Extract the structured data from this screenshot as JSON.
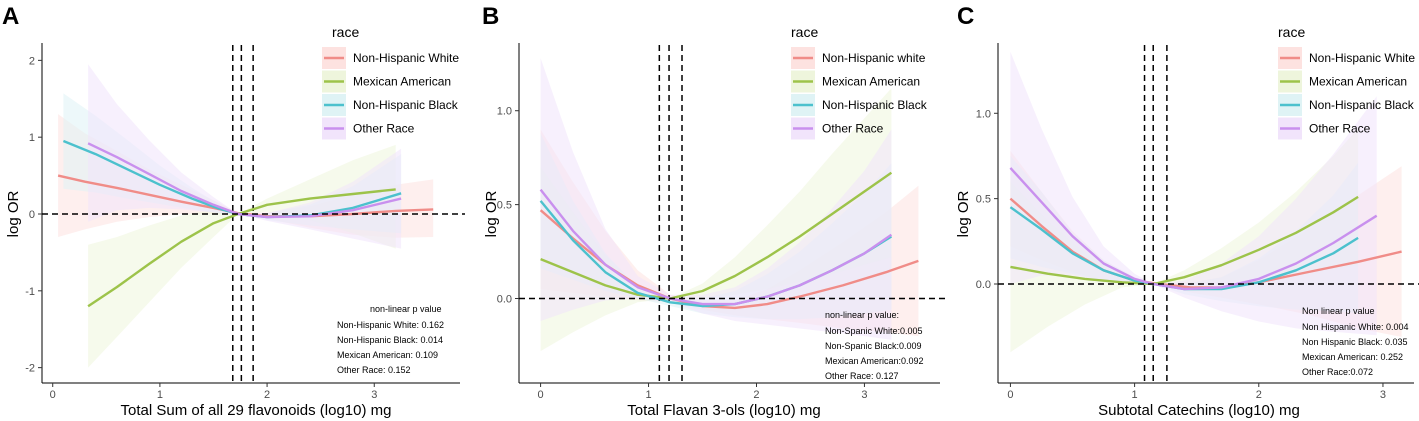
{
  "chart_data": [
    {
      "type": "line",
      "panel": "A",
      "xlabel": "Total Sum of all 29 flavonoids (log10) mg",
      "ylabel": "log OR",
      "xlim": [
        -0.1,
        3.8
      ],
      "ylim": [
        -2.2,
        2.2
      ],
      "xticks": [
        0,
        1,
        2,
        3
      ],
      "yticks": [
        -2,
        -1,
        0,
        1,
        2
      ],
      "ytick_labels": [
        "-2",
        "-1",
        "0",
        "1",
        "2"
      ],
      "vlines": [
        1.68,
        1.76,
        1.87
      ],
      "hline": 0,
      "legend_title": "race",
      "series": [
        {
          "name": "Non-Hispanic White",
          "color": "#F08C88",
          "fill": "#FDE2E0",
          "x": [
            0.05,
            0.3,
            0.6,
            0.9,
            1.2,
            1.5,
            1.73,
            2.0,
            2.4,
            2.8,
            3.2,
            3.55
          ],
          "y": [
            0.5,
            0.42,
            0.34,
            0.25,
            0.16,
            0.08,
            0.01,
            -0.03,
            -0.03,
            0.0,
            0.04,
            0.06
          ],
          "lo": [
            -0.3,
            -0.2,
            -0.1,
            -0.04,
            0.0,
            0.0,
            0.0,
            -0.06,
            -0.18,
            -0.27,
            -0.31,
            -0.3
          ],
          "hi": [
            1.3,
            1.05,
            0.82,
            0.58,
            0.38,
            0.18,
            0.02,
            0.02,
            0.1,
            0.25,
            0.38,
            0.45
          ]
        },
        {
          "name": "Mexican American",
          "color": "#9DC34A",
          "fill": "#EEF5DC",
          "x": [
            0.33,
            0.6,
            0.9,
            1.2,
            1.5,
            1.73,
            2.0,
            2.4,
            2.8,
            3.2
          ],
          "y": [
            -1.2,
            -0.95,
            -0.65,
            -0.36,
            -0.12,
            0.0,
            0.12,
            0.2,
            0.26,
            0.32
          ],
          "lo": [
            -2.0,
            -1.6,
            -1.15,
            -0.7,
            -0.3,
            0.0,
            0.03,
            -0.08,
            -0.25,
            -0.45
          ],
          "hi": [
            -0.4,
            -0.3,
            -0.15,
            -0.02,
            0.06,
            0.0,
            0.2,
            0.45,
            0.7,
            0.9
          ]
        },
        {
          "name": "Non-Hispanic Black",
          "color": "#4CC1CD",
          "fill": "#DFF3F5",
          "x": [
            0.1,
            0.4,
            0.7,
            1.0,
            1.3,
            1.55,
            1.73,
            2.0,
            2.4,
            2.8,
            3.25
          ],
          "y": [
            0.95,
            0.78,
            0.58,
            0.38,
            0.2,
            0.07,
            0.0,
            -0.04,
            -0.02,
            0.08,
            0.27
          ],
          "lo": [
            0.33,
            0.28,
            0.2,
            0.13,
            0.06,
            0.01,
            0.0,
            -0.08,
            -0.15,
            -0.2,
            -0.25
          ],
          "hi": [
            1.57,
            1.28,
            0.96,
            0.63,
            0.34,
            0.13,
            0.0,
            0.01,
            0.12,
            0.36,
            0.78
          ]
        },
        {
          "name": "Other Race",
          "color": "#C990EE",
          "fill": "#F1E4FB",
          "x": [
            0.33,
            0.6,
            0.9,
            1.2,
            1.5,
            1.73,
            2.0,
            2.4,
            2.8,
            3.25
          ],
          "y": [
            0.92,
            0.74,
            0.52,
            0.3,
            0.12,
            0.0,
            -0.04,
            -0.03,
            0.05,
            0.2
          ],
          "lo": [
            -0.1,
            0.05,
            0.08,
            0.06,
            0.02,
            0.0,
            -0.09,
            -0.2,
            -0.32,
            -0.45
          ],
          "hi": [
            1.95,
            1.43,
            0.96,
            0.54,
            0.22,
            0.0,
            0.01,
            0.15,
            0.42,
            0.85
          ]
        }
      ],
      "annotation_title": "non-linear p value",
      "annotations": [
        "Non-Hispanic White:  0.162",
        "Non-Hispanic Black:  0.014",
        "Mexican American: 0.109",
        "Other Race: 0.152"
      ]
    },
    {
      "type": "line",
      "panel": "B",
      "xlabel": "Total Flavan 3-ols (log10) mg",
      "ylabel": "log OR",
      "xlim": [
        -0.2,
        3.7
      ],
      "ylim": [
        -0.45,
        1.35
      ],
      "xticks": [
        0,
        1,
        2,
        3
      ],
      "yticks": [
        0,
        0.5,
        1
      ],
      "ytick_labels": [
        "0.0",
        "0.5",
        "1.0"
      ],
      "vlines": [
        1.1,
        1.19,
        1.31
      ],
      "hline": 0,
      "legend_title": "race",
      "series": [
        {
          "name": "Non-Hispanic white",
          "color": "#F08C88",
          "fill": "#FDE2E0",
          "x": [
            0,
            0.3,
            0.6,
            0.9,
            1.2,
            1.5,
            1.8,
            2.1,
            2.4,
            2.8,
            3.2,
            3.5
          ],
          "y": [
            0.47,
            0.32,
            0.18,
            0.07,
            0.0,
            -0.04,
            -0.05,
            -0.03,
            0.01,
            0.07,
            0.14,
            0.2
          ],
          "lo": [
            0.05,
            0.03,
            0.01,
            -0.01,
            -0.02,
            -0.06,
            -0.09,
            -0.11,
            -0.13,
            -0.16,
            -0.18,
            -0.2
          ],
          "hi": [
            0.9,
            0.62,
            0.36,
            0.15,
            0.02,
            -0.01,
            -0.01,
            0.05,
            0.15,
            0.3,
            0.46,
            0.6
          ]
        },
        {
          "name": "Mexican American",
          "color": "#9DC34A",
          "fill": "#EEF5DC",
          "x": [
            0,
            0.3,
            0.6,
            0.9,
            1.2,
            1.5,
            1.8,
            2.1,
            2.4,
            2.7,
            3.0,
            3.25
          ],
          "y": [
            0.21,
            0.14,
            0.07,
            0.02,
            0.0,
            0.04,
            0.12,
            0.22,
            0.33,
            0.45,
            0.57,
            0.67
          ],
          "lo": [
            -0.28,
            -0.18,
            -0.09,
            -0.02,
            0.0,
            0.0,
            0.02,
            0.05,
            0.09,
            0.13,
            0.18,
            0.22
          ],
          "hi": [
            0.7,
            0.46,
            0.23,
            0.06,
            0.0,
            0.08,
            0.22,
            0.39,
            0.57,
            0.77,
            0.96,
            1.12
          ]
        },
        {
          "name": "Non-Hispanic Black",
          "color": "#4CC1CD",
          "fill": "#DFF3F5",
          "x": [
            0,
            0.3,
            0.6,
            0.9,
            1.2,
            1.5,
            1.8,
            2.1,
            2.4,
            2.7,
            3.0,
            3.25
          ],
          "y": [
            0.52,
            0.31,
            0.14,
            0.03,
            -0.02,
            -0.04,
            -0.03,
            0.01,
            0.07,
            0.15,
            0.24,
            0.33
          ],
          "lo": [
            0.16,
            0.1,
            0.04,
            0.0,
            -0.04,
            -0.08,
            -0.1,
            -0.11,
            -0.11,
            -0.1,
            -0.08,
            -0.06
          ],
          "hi": [
            0.88,
            0.52,
            0.24,
            0.06,
            0.0,
            0.0,
            0.04,
            0.13,
            0.25,
            0.4,
            0.56,
            0.72
          ]
        },
        {
          "name": "Other Race",
          "color": "#C990EE",
          "fill": "#F1E4FB",
          "x": [
            0,
            0.3,
            0.6,
            0.9,
            1.2,
            1.5,
            1.8,
            2.1,
            2.4,
            2.7,
            3.0,
            3.25
          ],
          "y": [
            0.58,
            0.36,
            0.18,
            0.06,
            0.0,
            -0.03,
            -0.03,
            0.01,
            0.07,
            0.15,
            0.24,
            0.34
          ],
          "lo": [
            -0.12,
            -0.06,
            -0.01,
            0.0,
            -0.02,
            -0.08,
            -0.12,
            -0.14,
            -0.16,
            -0.18,
            -0.2,
            -0.22
          ],
          "hi": [
            1.28,
            0.78,
            0.37,
            0.12,
            0.02,
            0.02,
            0.06,
            0.16,
            0.3,
            0.48,
            0.68,
            0.9
          ]
        }
      ],
      "annotation_title": "non-linear p value:",
      "annotations": [
        "Non-Spanic White:0.005",
        "Non-Spanic Black:0.009",
        "Mexican American:0.092",
        "Other Race: 0.127"
      ]
    },
    {
      "type": "line",
      "panel": "C",
      "xlabel": "Subtotal Catechins (log10) mg",
      "ylabel": "log OR",
      "xlim": [
        -0.1,
        3.25
      ],
      "ylim": [
        -0.58,
        1.4
      ],
      "xticks": [
        0,
        1,
        2,
        3
      ],
      "yticks": [
        0,
        0.5,
        1
      ],
      "ytick_labels": [
        "0.0",
        "0.5",
        "1.0"
      ],
      "vlines": [
        1.08,
        1.15,
        1.26
      ],
      "hline": 0,
      "legend_title": "race",
      "series": [
        {
          "name": "Non-Hispanic White",
          "color": "#F08C88",
          "fill": "#FDE2E0",
          "x": [
            0,
            0.25,
            0.5,
            0.75,
            1.0,
            1.2,
            1.45,
            1.7,
            2.0,
            2.4,
            2.8,
            3.15
          ],
          "y": [
            0.5,
            0.34,
            0.19,
            0.08,
            0.02,
            0.0,
            -0.02,
            -0.02,
            0.01,
            0.07,
            0.13,
            0.19
          ],
          "lo": [
            0.22,
            0.14,
            0.07,
            0.02,
            0.0,
            0.0,
            -0.05,
            -0.08,
            -0.12,
            -0.18,
            -0.26,
            -0.31
          ],
          "hi": [
            0.78,
            0.54,
            0.31,
            0.14,
            0.04,
            0.0,
            0.01,
            0.04,
            0.14,
            0.32,
            0.52,
            0.69
          ]
        },
        {
          "name": "Mexican American",
          "color": "#9DC34A",
          "fill": "#EEF5DC",
          "x": [
            0,
            0.3,
            0.6,
            0.9,
            1.15,
            1.4,
            1.7,
            2.0,
            2.3,
            2.6,
            2.8
          ],
          "y": [
            0.1,
            0.06,
            0.03,
            0.01,
            0.0,
            0.04,
            0.11,
            0.2,
            0.3,
            0.42,
            0.51
          ],
          "lo": [
            -0.4,
            -0.25,
            -0.12,
            -0.02,
            0.0,
            0.0,
            0.01,
            0.04,
            0.06,
            0.09,
            0.11
          ],
          "hi": [
            0.6,
            0.37,
            0.18,
            0.04,
            0.0,
            0.08,
            0.21,
            0.36,
            0.54,
            0.75,
            0.91
          ]
        },
        {
          "name": "Non-Hispanic Black",
          "color": "#4CC1CD",
          "fill": "#DFF3F5",
          "x": [
            0,
            0.25,
            0.5,
            0.75,
            1.0,
            1.15,
            1.4,
            1.7,
            2.0,
            2.3,
            2.6,
            2.8
          ],
          "y": [
            0.45,
            0.32,
            0.18,
            0.08,
            0.02,
            0.0,
            -0.03,
            -0.03,
            0.01,
            0.08,
            0.18,
            0.27
          ],
          "lo": [
            0.15,
            0.1,
            0.06,
            0.02,
            0.0,
            0.0,
            -0.06,
            -0.1,
            -0.13,
            -0.15,
            -0.16,
            -0.17
          ],
          "hi": [
            0.75,
            0.54,
            0.3,
            0.14,
            0.04,
            0.0,
            0.0,
            0.04,
            0.15,
            0.31,
            0.52,
            0.71
          ]
        },
        {
          "name": "Other Race",
          "color": "#C990EE",
          "fill": "#F1E4FB",
          "x": [
            0,
            0.25,
            0.5,
            0.75,
            1.0,
            1.15,
            1.4,
            1.7,
            2.0,
            2.3,
            2.6,
            2.95
          ],
          "y": [
            0.68,
            0.48,
            0.28,
            0.12,
            0.03,
            0.0,
            -0.03,
            -0.02,
            0.03,
            0.12,
            0.24,
            0.4
          ],
          "lo": [
            0.0,
            0.05,
            0.05,
            0.02,
            0.0,
            0.0,
            -0.08,
            -0.16,
            -0.22,
            -0.26,
            -0.28,
            -0.3
          ],
          "hi": [
            1.36,
            0.91,
            0.51,
            0.22,
            0.06,
            0.0,
            0.02,
            0.12,
            0.28,
            0.5,
            0.76,
            1.1
          ]
        }
      ],
      "annotation_title": "Non linear p value",
      "annotations": [
        "Non Hispanic White: 0.004",
        "Non Hispanic Black: 0.035",
        "Mexican American: 0.252",
        "Other Race:0.072"
      ]
    }
  ]
}
